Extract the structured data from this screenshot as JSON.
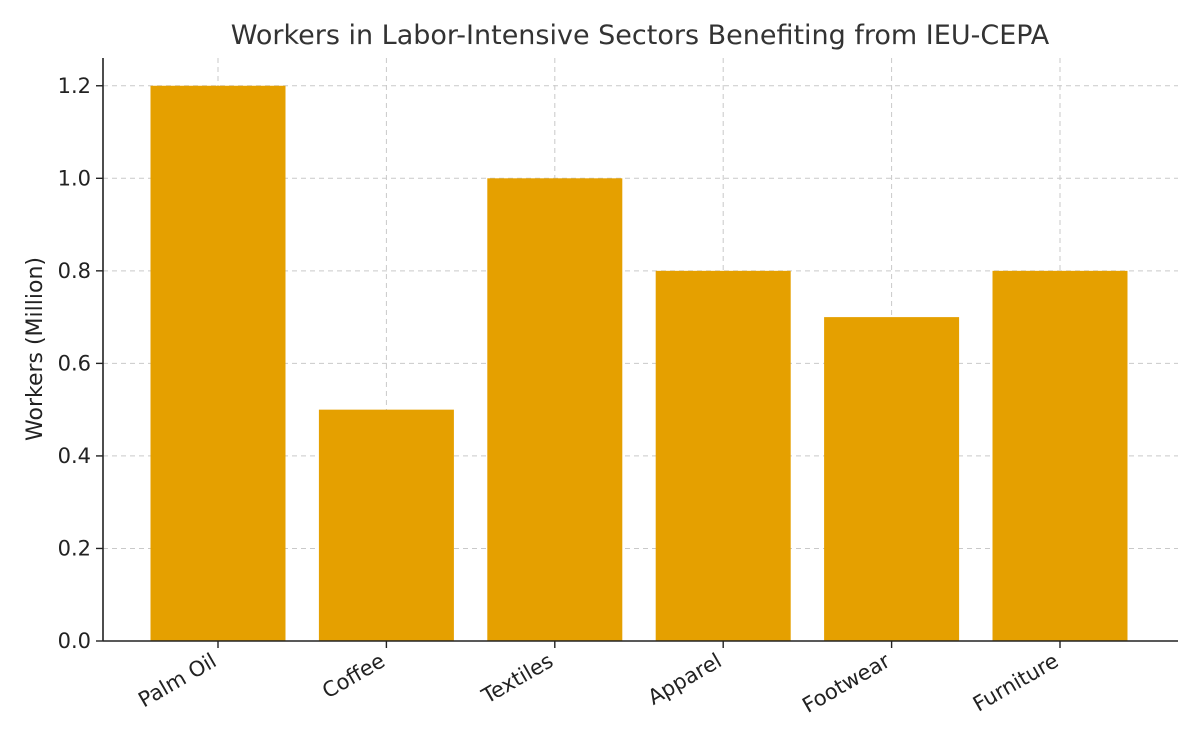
{
  "chart_data": {
    "type": "bar",
    "title": "Workers in Labor-Intensive Sectors Benefiting from IEU-CEPA",
    "xlabel": "",
    "ylabel": "Workers (Million)",
    "categories": [
      "Palm Oil",
      "Coffee",
      "Textiles",
      "Apparel",
      "Footwear",
      "Furniture"
    ],
    "values": [
      1.2,
      0.5,
      1.0,
      0.8,
      0.7,
      0.8
    ],
    "ylim": [
      0,
      1.26
    ],
    "yticks": [
      0.0,
      0.2,
      0.4,
      0.6,
      0.8,
      1.0,
      1.2
    ],
    "ytick_labels": [
      "0.0",
      "0.2",
      "0.4",
      "0.6",
      "0.8",
      "1.0",
      "1.2"
    ],
    "grid": true,
    "bar_color": "#E5A000"
  }
}
